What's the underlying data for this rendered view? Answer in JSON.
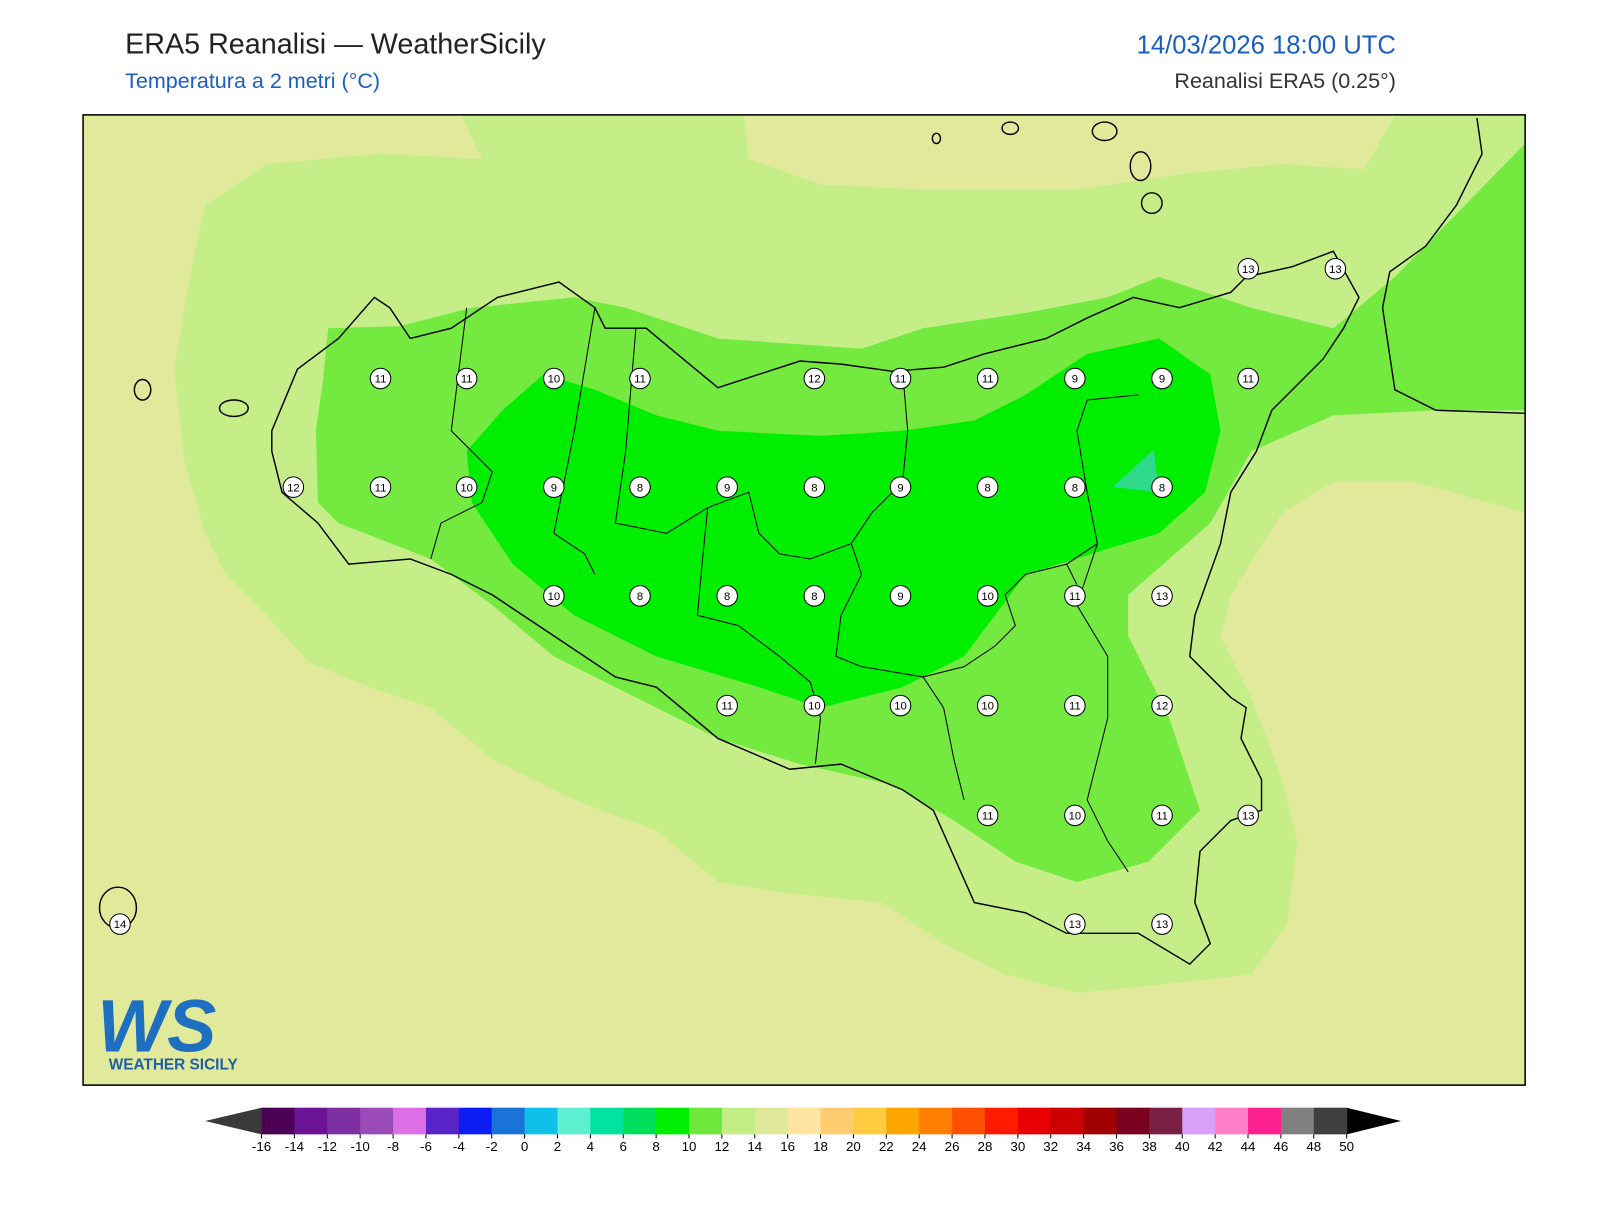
{
  "header": {
    "title": "ERA5 Reanalisi — WeatherSicily",
    "subtitle": "Temperatura a 2 metri (°C)",
    "datetime": "14/03/2026 18:00 UTC",
    "source": "Reanalisi ERA5 (0.25°)"
  },
  "stations": [
    11,
    11,
    10,
    11,
    12,
    11,
    11,
    9,
    9,
    11,
    13,
    13,
    12,
    11,
    10,
    9,
    8,
    9,
    8,
    9,
    8,
    8,
    8,
    10,
    8,
    8,
    8,
    9,
    10,
    11,
    13,
    11,
    10,
    10,
    10,
    11,
    12,
    11,
    10,
    11,
    13,
    14,
    13,
    13
  ],
  "colorbar": {
    "ticks": [
      -16,
      -14,
      -12,
      -10,
      -8,
      -6,
      -4,
      -2,
      0,
      2,
      4,
      6,
      8,
      10,
      12,
      14,
      16,
      18,
      20,
      22,
      24,
      26,
      28,
      30,
      32,
      34,
      36,
      38,
      40,
      42,
      44,
      46,
      48,
      50
    ],
    "colors": [
      "#4b0055",
      "#6a1495",
      "#7e30a3",
      "#9b4bb8",
      "#dc6fe6",
      "#5a23c8",
      "#0b1cf5",
      "#1a74d8",
      "#0fc0e8",
      "#5ef0d0",
      "#00e3a0",
      "#00dd5a",
      "#00ee00",
      "#6ee83c",
      "#c2ee85",
      "#e0e89a",
      "#ffe3a0",
      "#ffcc70",
      "#ffcc40",
      "#ffa500",
      "#ff8000",
      "#ff5000",
      "#ff1a00",
      "#e60000",
      "#cc0000",
      "#a00000",
      "#7a0020",
      "#7a2045",
      "#d8a0f8",
      "#ff80c8",
      "#ff2090",
      "#808080",
      "#404040"
    ],
    "under_color": "#3a3a3a",
    "over_color": "#000000"
  },
  "logo": {
    "mark": "WS",
    "text": "WEATHER SICILY"
  }
}
